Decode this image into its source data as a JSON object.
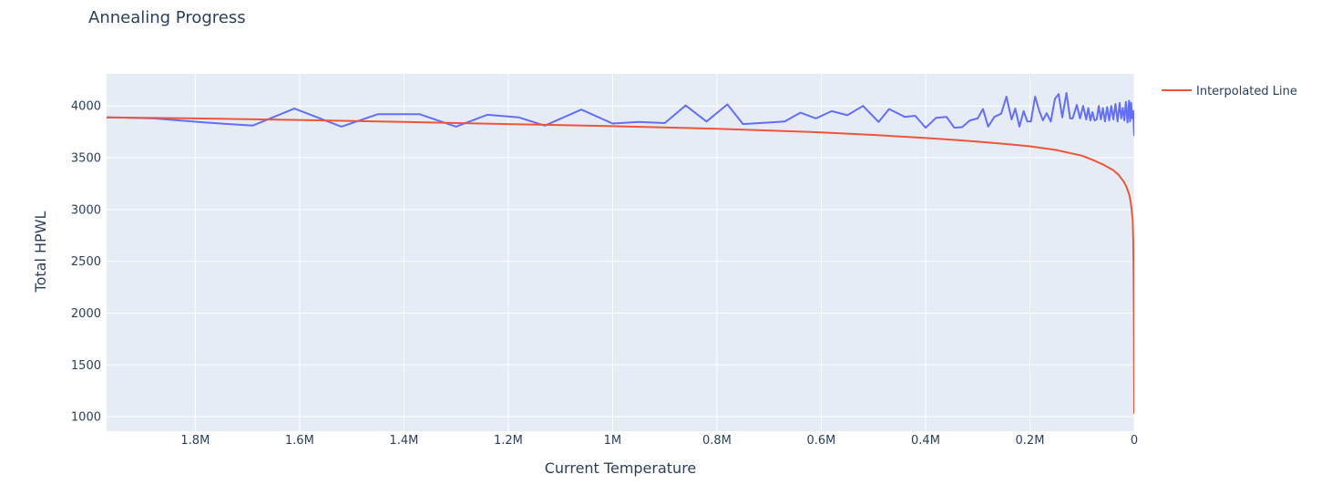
{
  "chart_data": {
    "type": "line",
    "title": "Annealing Progress",
    "xlabel": "Current Temperature",
    "ylabel": "Total HPWL",
    "x_reversed": true,
    "xlim": [
      1970000,
      0
    ],
    "ylim": [
      860,
      4310
    ],
    "x_ticks": [
      {
        "value": 1800000,
        "label": "1.8M"
      },
      {
        "value": 1600000,
        "label": "1.6M"
      },
      {
        "value": 1400000,
        "label": "1.4M"
      },
      {
        "value": 1200000,
        "label": "1.2M"
      },
      {
        "value": 1000000,
        "label": "1M"
      },
      {
        "value": 800000,
        "label": "0.8M"
      },
      {
        "value": 600000,
        "label": "0.6M"
      },
      {
        "value": 400000,
        "label": "0.4M"
      },
      {
        "value": 200000,
        "label": "0.2M"
      },
      {
        "value": 0,
        "label": "0"
      }
    ],
    "y_ticks": [
      {
        "value": 1000,
        "label": "1000"
      },
      {
        "value": 1500,
        "label": "1500"
      },
      {
        "value": 2000,
        "label": "2000"
      },
      {
        "value": 2500,
        "label": "2500"
      },
      {
        "value": 3000,
        "label": "3000"
      },
      {
        "value": 3500,
        "label": "3500"
      },
      {
        "value": 4000,
        "label": "4000"
      }
    ],
    "grid": true,
    "legend_position": "top-right",
    "colors": {
      "plot_bg": "#e5ecf6",
      "grid": "#ffffff",
      "series_1": "#636efa",
      "series_2": "#ef553b"
    },
    "series": [
      {
        "show_in_legend": false,
        "x": [
          1970000,
          1880000,
          1780000,
          1690000,
          1610000,
          1520000,
          1450000,
          1370000,
          1300000,
          1240000,
          1180000,
          1130000,
          1060000,
          1000000,
          950000,
          900000,
          860000,
          820000,
          780000,
          750000,
          700000,
          670000,
          640000,
          610000,
          580000,
          550000,
          520000,
          490000,
          470000,
          440000,
          420000,
          400000,
          380000,
          360000,
          345000,
          330000,
          315000,
          300000,
          290000,
          280000,
          268000,
          255000,
          245000,
          235000,
          228000,
          220000,
          212000,
          205000,
          198000,
          190000,
          182000,
          175000,
          168000,
          160000,
          152000,
          145000,
          138000,
          130000,
          123000,
          118000,
          110000,
          104000,
          98000,
          92000,
          88000,
          84000,
          80000,
          76000,
          72000,
          68000,
          64000,
          60000,
          56000,
          52000,
          48000,
          44000,
          40000,
          36000,
          32000,
          28000,
          25000,
          22000,
          19000,
          16000,
          13000,
          10000,
          8000,
          6000,
          4000,
          2000,
          0
        ],
        "y": [
          3890,
          3880,
          3840,
          3810,
          3975,
          3800,
          3920,
          3920,
          3800,
          3915,
          3890,
          3810,
          3965,
          3830,
          3845,
          3835,
          4005,
          3850,
          4015,
          3825,
          3840,
          3850,
          3935,
          3880,
          3950,
          3910,
          4000,
          3845,
          3970,
          3895,
          3905,
          3790,
          3885,
          3895,
          3790,
          3795,
          3860,
          3880,
          3970,
          3800,
          3895,
          3925,
          4090,
          3870,
          3975,
          3800,
          3950,
          3850,
          3850,
          4090,
          3950,
          3860,
          3930,
          3850,
          4070,
          4115,
          3890,
          4125,
          3880,
          3880,
          4010,
          3880,
          4000,
          3870,
          3980,
          3860,
          3940,
          3860,
          3870,
          4000,
          3870,
          3980,
          3850,
          3990,
          3860,
          4000,
          3870,
          4020,
          3850,
          4030,
          3880,
          3980,
          3860,
          4040,
          3840,
          4050,
          3850,
          4030,
          3880,
          3950,
          3710
        ]
      },
      {
        "name": "Interpolated Line",
        "x": [
          1970000,
          1800000,
          1600000,
          1400000,
          1200000,
          1000000,
          800000,
          600000,
          500000,
          400000,
          350000,
          300000,
          250000,
          200000,
          150000,
          100000,
          80000,
          60000,
          40000,
          30000,
          20000,
          15000,
          10000,
          7000,
          5000,
          3000,
          2000,
          1000,
          500,
          0
        ],
        "y": [
          3890,
          3880,
          3865,
          3845,
          3825,
          3805,
          3780,
          3745,
          3720,
          3690,
          3675,
          3655,
          3635,
          3610,
          3575,
          3520,
          3480,
          3435,
          3380,
          3335,
          3270,
          3220,
          3150,
          3080,
          3000,
          2900,
          2700,
          2300,
          1800,
          1030
        ]
      }
    ]
  }
}
